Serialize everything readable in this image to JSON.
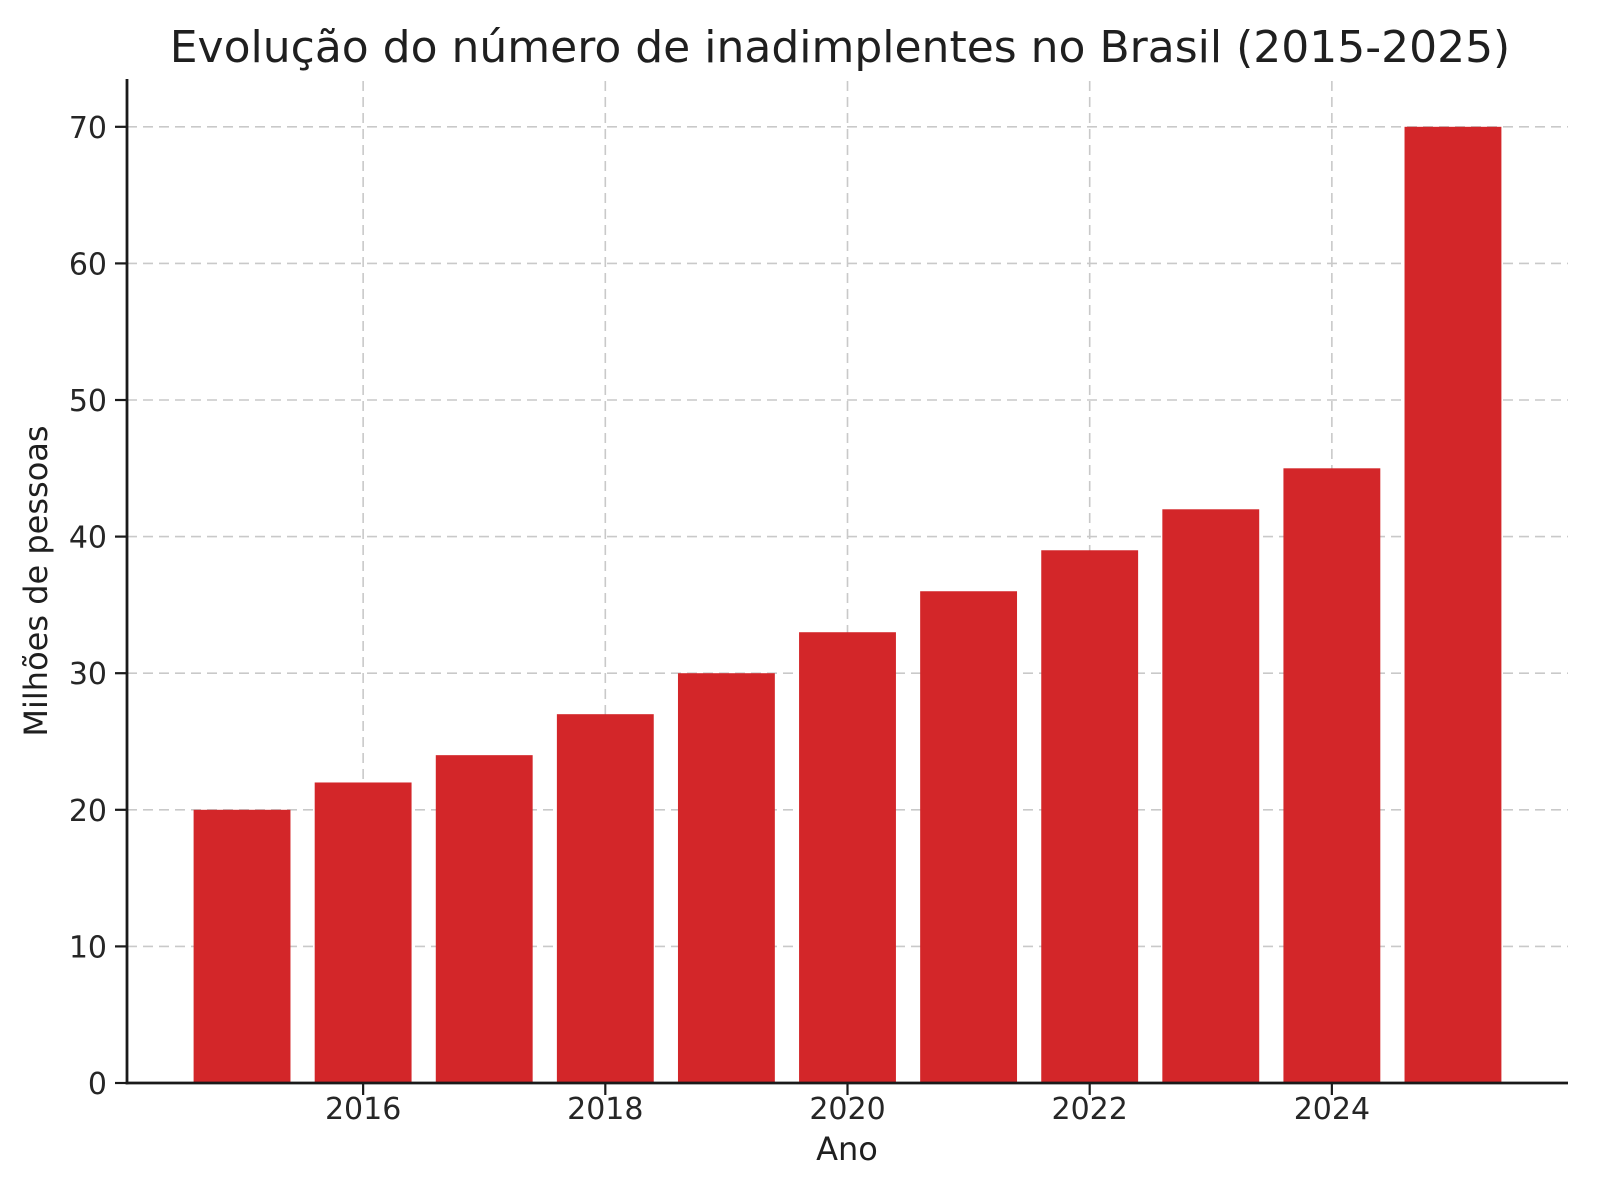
{
  "chart_data": {
    "type": "bar",
    "title": "Evolução do número de inadimplentes no Brasil (2015-2025)",
    "xlabel": "Ano",
    "ylabel": "Milhões de pessoas",
    "categories": [
      2015,
      2016,
      2017,
      2018,
      2019,
      2020,
      2021,
      2022,
      2023,
      2024,
      2025
    ],
    "values": [
      20,
      22,
      24,
      27,
      30,
      33,
      36,
      39,
      42,
      45,
      70
    ],
    "xticks": [
      2016,
      2018,
      2020,
      2022,
      2024
    ],
    "yticks": [
      0,
      10,
      20,
      30,
      40,
      50,
      60,
      70
    ],
    "xlim": [
      2014.05,
      2025.95
    ],
    "ylim": [
      0,
      73.5
    ],
    "bar_width": 0.8,
    "grid": true,
    "legend": "none",
    "colors": {
      "bar": "#d32629",
      "grid": "#c9c9c9",
      "spine": "#1a1a1a",
      "text": "#1f1f1f",
      "background": "#ffffff"
    }
  }
}
